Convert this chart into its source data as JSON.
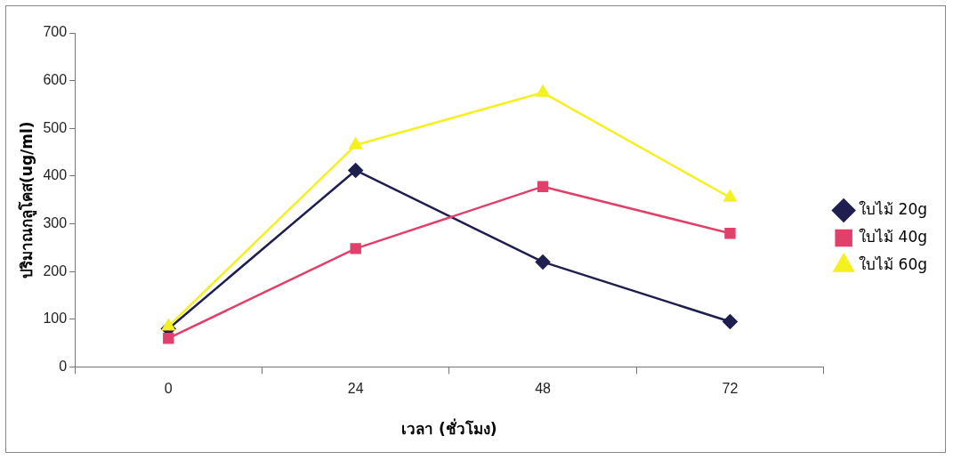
{
  "chart_data": {
    "type": "line",
    "categories": [
      "0",
      "24",
      "48",
      "72"
    ],
    "xlabel": "เวลา (ชั่วโมง)",
    "ylabel": "ปริมาณกลูโคส(ug/ml)",
    "series": [
      {
        "name": "ใบไม้ 20g",
        "color": "#1f1f4f",
        "marker": "diamond",
        "values": [
          80,
          412,
          220,
          95
        ]
      },
      {
        "name": "ใบไม้ 40g",
        "color": "#e0406a",
        "marker": "square",
        "values": [
          60,
          248,
          378,
          280
        ]
      },
      {
        "name": "ใบไม้ 60g",
        "color": "#f5f020",
        "marker": "triangle",
        "values": [
          85,
          465,
          575,
          355
        ]
      }
    ],
    "ylim": [
      0,
      700
    ],
    "yticks": [
      0,
      100,
      200,
      300,
      400,
      500,
      600,
      700
    ],
    "grid": false,
    "legend": "right"
  }
}
